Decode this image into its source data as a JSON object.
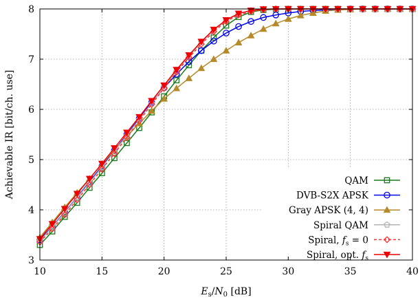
{
  "chart_data": {
    "type": "line",
    "xlabel": "E_s/N_0 [dB]",
    "xlabel_parts": {
      "E": "E",
      "s": "s",
      "slash": "/",
      "N": "N",
      "zero": "0",
      "unit": " [dB]"
    },
    "ylabel": "Achievable IR [bit/ch. use]",
    "xlim": [
      10,
      40
    ],
    "ylim": [
      3,
      8
    ],
    "xticks": [
      "10",
      "15",
      "20",
      "25",
      "30",
      "35",
      "40"
    ],
    "yticks": [
      "3",
      "4",
      "5",
      "6",
      "7",
      "8"
    ],
    "grid": true,
    "legend_position": "bottom-right",
    "x": [
      10,
      11,
      12,
      13,
      14,
      15,
      16,
      17,
      18,
      19,
      20,
      21,
      22,
      23,
      24,
      25,
      26,
      27,
      28,
      29,
      30,
      31,
      32,
      33,
      34,
      35,
      36,
      37,
      38,
      39,
      40
    ],
    "series": [
      {
        "name": "QAM",
        "color": "#1a7a1a",
        "marker": "square",
        "values": [
          3.3,
          3.57,
          3.86,
          4.14,
          4.44,
          4.73,
          5.03,
          5.33,
          5.63,
          5.94,
          6.26,
          6.58,
          6.88,
          7.17,
          7.43,
          7.67,
          7.84,
          7.94,
          7.98,
          7.995,
          8,
          8,
          8,
          8,
          8,
          8,
          8,
          8,
          8,
          8,
          8
        ]
      },
      {
        "name": "DVB-S2X APSK",
        "color": "#0000ee",
        "marker": "circle",
        "values": [
          3.4,
          3.67,
          3.95,
          4.25,
          4.56,
          4.87,
          5.18,
          5.5,
          5.82,
          6.14,
          6.43,
          6.7,
          6.95,
          7.17,
          7.36,
          7.52,
          7.65,
          7.75,
          7.83,
          7.88,
          7.92,
          7.95,
          7.97,
          7.98,
          7.99,
          8,
          8,
          8,
          8,
          8,
          8
        ]
      },
      {
        "name": "Gray APSK (4, 4)",
        "color": "#b58a2a",
        "marker": "triangle-up",
        "values": [
          3.45,
          3.75,
          4.05,
          4.34,
          4.62,
          4.91,
          5.19,
          5.46,
          5.72,
          5.97,
          6.21,
          6.42,
          6.62,
          6.82,
          7.0,
          7.17,
          7.33,
          7.47,
          7.6,
          7.71,
          7.8,
          7.87,
          7.92,
          7.96,
          7.98,
          7.99,
          8,
          8,
          8,
          8,
          8
        ]
      },
      {
        "name": "Spiral QAM",
        "color": "#b4b4b4",
        "marker": "pentagon",
        "values": [
          3.38,
          3.66,
          3.94,
          4.24,
          4.54,
          4.85,
          5.16,
          5.48,
          5.8,
          6.12,
          6.45,
          6.76,
          7.06,
          7.34,
          7.58,
          7.77,
          7.9,
          7.97,
          7.995,
          8,
          8,
          8,
          8,
          8,
          8,
          8,
          8,
          8,
          8,
          8,
          8
        ]
      },
      {
        "name": "Spiral, f_s = 0",
        "color": "#ff3030",
        "marker": "diamond",
        "dashed": true,
        "values": [
          3.36,
          3.62,
          3.9,
          4.2,
          4.5,
          4.81,
          5.12,
          5.44,
          5.77,
          6.1,
          6.42,
          6.74,
          7.03,
          7.3,
          7.55,
          7.75,
          7.88,
          7.95,
          7.99,
          8,
          8,
          8,
          8,
          8,
          8,
          8,
          8,
          8,
          8,
          8,
          8
        ]
      },
      {
        "name": "Spiral, opt. f_s",
        "color": "#ee0000",
        "marker": "triangle-down",
        "values": [
          3.42,
          3.72,
          4.02,
          4.32,
          4.62,
          4.92,
          5.23,
          5.54,
          5.85,
          6.17,
          6.48,
          6.79,
          7.08,
          7.35,
          7.59,
          7.78,
          7.91,
          7.97,
          7.995,
          8,
          8,
          8,
          8,
          8,
          8,
          8,
          8,
          8,
          8,
          8,
          8
        ]
      }
    ],
    "legend_text": {
      "qam": "QAM",
      "dvb": "DVB-S2X APSK",
      "gray": "Gray APSK (4, 4)",
      "spiral_qam": "Spiral QAM",
      "spiral_fs0_prefix": "Spiral, ",
      "spiral_fs0_f": "f",
      "spiral_fs0_sub": "s",
      "spiral_fs0_suffix": " = 0",
      "spiral_opt_prefix": "Spiral, opt. ",
      "spiral_opt_f": "f",
      "spiral_opt_sub": "s"
    }
  }
}
